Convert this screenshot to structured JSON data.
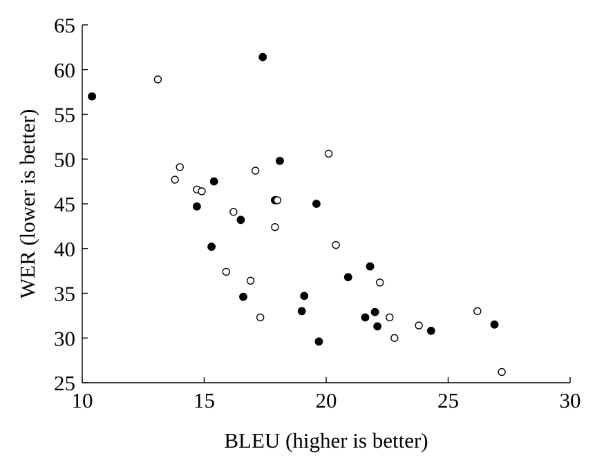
{
  "chart_data": {
    "type": "scatter",
    "xlabel": "BLEU (higher is better)",
    "ylabel": "WER (lower is better)",
    "xlim": [
      10,
      30
    ],
    "ylim": [
      25,
      65
    ],
    "xticks": [
      10,
      15,
      20,
      25,
      30
    ],
    "yticks": [
      25,
      30,
      35,
      40,
      45,
      50,
      55,
      60,
      65
    ],
    "grid": false,
    "series": [
      {
        "marker": "filled-circle",
        "color": "#000000",
        "points": [
          {
            "x": 10.4,
            "y": 57.0
          },
          {
            "x": 17.4,
            "y": 61.4
          },
          {
            "x": 18.1,
            "y": 49.8
          },
          {
            "x": 15.4,
            "y": 47.5
          },
          {
            "x": 14.7,
            "y": 44.7
          },
          {
            "x": 17.9,
            "y": 45.4
          },
          {
            "x": 19.6,
            "y": 45.0
          },
          {
            "x": 16.5,
            "y": 43.2
          },
          {
            "x": 15.3,
            "y": 40.2
          },
          {
            "x": 21.8,
            "y": 38.0
          },
          {
            "x": 20.9,
            "y": 36.8
          },
          {
            "x": 16.6,
            "y": 34.6
          },
          {
            "x": 19.1,
            "y": 34.7
          },
          {
            "x": 19.0,
            "y": 33.0
          },
          {
            "x": 22.0,
            "y": 32.9
          },
          {
            "x": 21.6,
            "y": 32.3
          },
          {
            "x": 22.1,
            "y": 31.3
          },
          {
            "x": 24.3,
            "y": 30.8
          },
          {
            "x": 26.9,
            "y": 31.5
          },
          {
            "x": 19.7,
            "y": 29.6
          }
        ]
      },
      {
        "marker": "open-circle",
        "color": "#000000",
        "points": [
          {
            "x": 13.1,
            "y": 58.9
          },
          {
            "x": 20.1,
            "y": 50.6
          },
          {
            "x": 14.0,
            "y": 49.1
          },
          {
            "x": 17.1,
            "y": 48.7
          },
          {
            "x": 13.8,
            "y": 47.7
          },
          {
            "x": 14.7,
            "y": 46.6
          },
          {
            "x": 14.9,
            "y": 46.4
          },
          {
            "x": 18.0,
            "y": 45.4
          },
          {
            "x": 16.2,
            "y": 44.1
          },
          {
            "x": 17.9,
            "y": 42.4
          },
          {
            "x": 20.4,
            "y": 40.4
          },
          {
            "x": 15.9,
            "y": 37.4
          },
          {
            "x": 16.9,
            "y": 36.4
          },
          {
            "x": 22.2,
            "y": 36.2
          },
          {
            "x": 17.3,
            "y": 32.3
          },
          {
            "x": 22.6,
            "y": 32.3
          },
          {
            "x": 26.2,
            "y": 33.0
          },
          {
            "x": 23.8,
            "y": 31.4
          },
          {
            "x": 22.8,
            "y": 30.0
          },
          {
            "x": 27.2,
            "y": 26.2
          }
        ]
      }
    ]
  }
}
